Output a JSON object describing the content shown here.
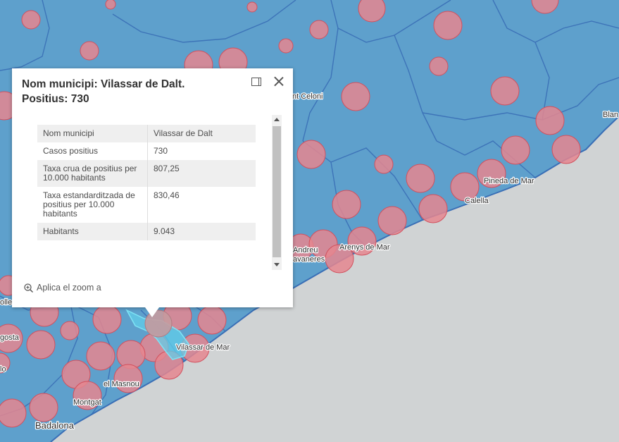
{
  "map": {
    "colors": {
      "land": "#5ea0cc",
      "sea": "#d0d3d4",
      "border": "#3a6fb6",
      "symbol": "#e5868f",
      "symbol_stroke": "#d2505d",
      "selected": "#62cde9"
    },
    "place_labels": {
      "sant_celoni": "nt Celoni",
      "blanes": "Blan",
      "pineda": "Pineda de Mar",
      "calella": "Calella",
      "arenys": "Arenys de Mar",
      "andreu": "Andreu",
      "llavaneres": "avaneres",
      "vilassar_mar": "Vilassar de Mar",
      "masnou": "el Masnou",
      "montgat": "Montgat",
      "badalona": "Badalona",
      "cerdanyola": "olle",
      "mogoda": "gosta",
      "partial": "lo"
    }
  },
  "popup": {
    "title": "Nom municipi: Vilassar de Dalt. Positius: 730",
    "dock_icon": "dock-icon",
    "close_icon": "close-icon",
    "fields": [
      {
        "label": "Nom municipi",
        "value": "Vilassar de Dalt"
      },
      {
        "label": "Casos positius",
        "value": "730"
      },
      {
        "label": "Taxa crua de positius per 10.000 habitants",
        "value": "807,25"
      },
      {
        "label": "Taxa estandarditzada de positius per 10.000 habitants",
        "value": "830,46"
      },
      {
        "label": "Habitants",
        "value": "9.043"
      }
    ],
    "zoom_action": "Aplica el zoom a",
    "zoom_icon": "zoom-in-icon"
  }
}
